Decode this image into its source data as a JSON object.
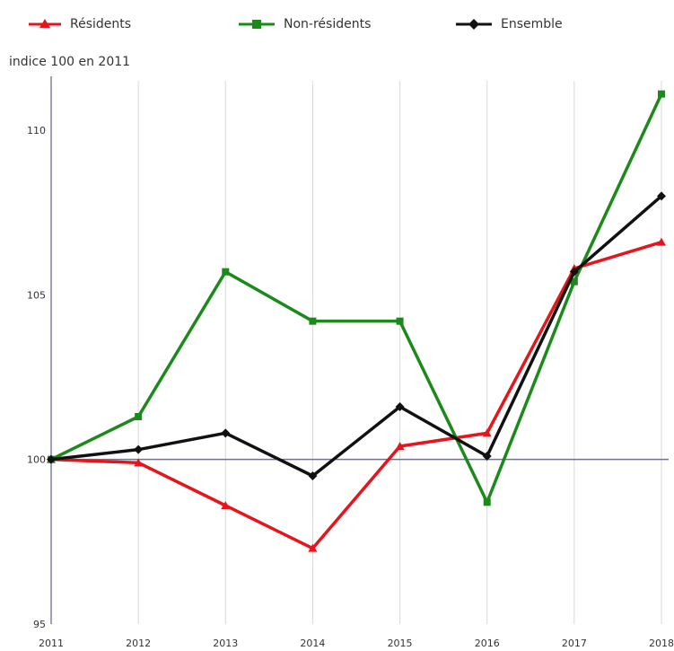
{
  "chart_data": {
    "type": "line",
    "ylabel": "indice 100 en 2011",
    "x": [
      "2011",
      "2012",
      "2013",
      "2014",
      "2015",
      "2016",
      "2017",
      "2018"
    ],
    "ylim": [
      95,
      111.5
    ],
    "yticks": [
      95,
      100,
      105,
      110
    ],
    "grid": "vertical",
    "reference_line": 100,
    "legend_position": "top",
    "series": [
      {
        "name": "Résidents",
        "color": "#e8141c",
        "marker": "triangle",
        "values": [
          100.0,
          99.9,
          98.6,
          97.3,
          100.4,
          100.8,
          105.8,
          106.6
        ]
      },
      {
        "name": "Non-résidents",
        "color": "#1b8a1b",
        "marker": "square",
        "values": [
          100.0,
          101.3,
          105.7,
          104.2,
          104.2,
          98.7,
          105.4,
          111.1
        ]
      },
      {
        "name": "Ensemble",
        "color": "#111111",
        "marker": "diamond",
        "values": [
          100.0,
          100.3,
          100.8,
          99.5,
          101.6,
          100.1,
          105.7,
          108.0
        ]
      }
    ]
  }
}
